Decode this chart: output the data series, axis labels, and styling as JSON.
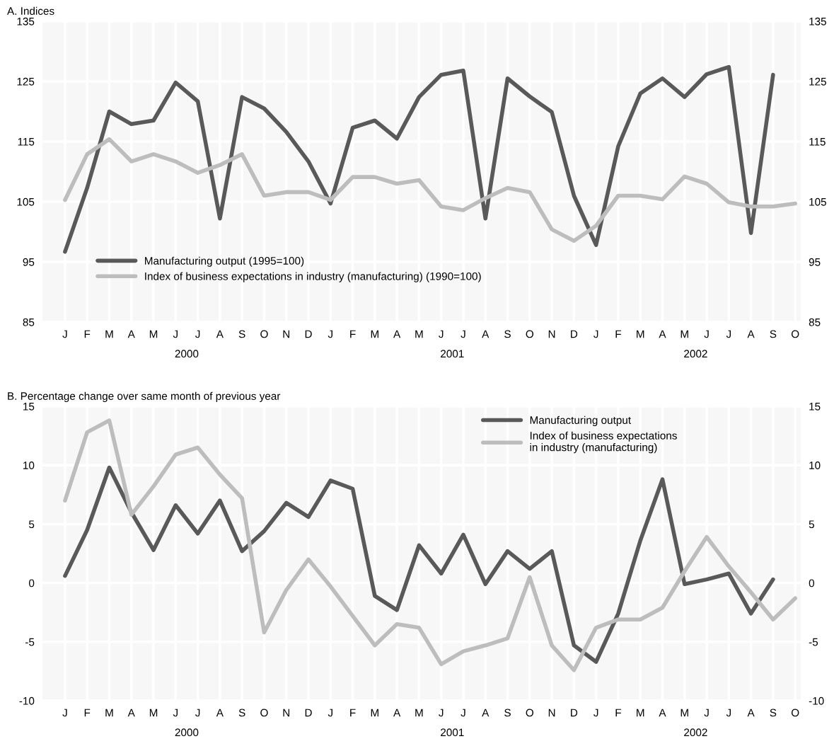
{
  "chart_data": [
    {
      "type": "line",
      "title": "A. Indices",
      "categories": [
        "J",
        "F",
        "M",
        "A",
        "M",
        "J",
        "J",
        "A",
        "S",
        "O",
        "N",
        "D",
        "J",
        "F",
        "M",
        "A",
        "M",
        "J",
        "J",
        "A",
        "S",
        "O",
        "N",
        "D",
        "J",
        "F",
        "M",
        "A",
        "M",
        "J",
        "J",
        "A",
        "S",
        "O"
      ],
      "series": [
        {
          "name": "Manufacturing output (1995=100)",
          "color": "#595959",
          "values": [
            96.7,
            107.3,
            120.0,
            117.9,
            118.5,
            124.8,
            121.7,
            102.2,
            122.4,
            120.5,
            116.6,
            111.7,
            104.7,
            117.3,
            118.5,
            115.5,
            122.4,
            126.1,
            126.8,
            102.2,
            125.5,
            122.5,
            119.9,
            106.0,
            97.8,
            114.2,
            123.0,
            125.5,
            122.4,
            126.2,
            127.4,
            99.8,
            126.1,
            null
          ]
        },
        {
          "name": "Index of business expectations in industry (manufacturing) (1990=100)",
          "color": "#bdbdbd",
          "values": [
            105.3,
            112.9,
            115.4,
            111.7,
            112.9,
            111.7,
            109.8,
            111.1,
            112.9,
            106.0,
            106.6,
            106.6,
            105.3,
            109.1,
            109.1,
            108.0,
            108.6,
            104.2,
            103.6,
            105.6,
            107.3,
            106.6,
            100.4,
            98.5,
            101.0,
            106.0,
            106.0,
            105.4,
            109.2,
            108.0,
            104.9,
            104.2,
            104.2,
            104.7
          ]
        }
      ],
      "ylim": [
        85,
        135
      ],
      "yticks": [
        85,
        95,
        105,
        115,
        125,
        135
      ],
      "y2lim": [
        85,
        135
      ],
      "y2ticks": [
        85,
        95,
        105,
        115,
        125,
        135
      ],
      "grid": true,
      "legend": "bottom left",
      "line_style": "solid",
      "marker": "none",
      "annotations": [
        "2000",
        "2001",
        "2002"
      ]
    },
    {
      "type": "line",
      "title": "B. Percentage change over same month of previous year",
      "categories": [
        "J",
        "F",
        "M",
        "A",
        "M",
        "J",
        "J",
        "A",
        "S",
        "O",
        "N",
        "D",
        "J",
        "F",
        "M",
        "A",
        "M",
        "J",
        "J",
        "A",
        "S",
        "O",
        "N",
        "D",
        "J",
        "F",
        "M",
        "A",
        "M",
        "J",
        "J",
        "A",
        "S",
        "O"
      ],
      "series": [
        {
          "name": "Manufacturing output",
          "color": "#595959",
          "values": [
            0.6,
            4.5,
            9.8,
            6.0,
            2.8,
            6.6,
            4.2,
            7.0,
            2.7,
            4.4,
            6.8,
            5.6,
            8.7,
            8.0,
            -1.1,
            -2.3,
            3.2,
            0.8,
            4.1,
            -0.1,
            2.7,
            1.2,
            2.7,
            -5.3,
            -6.7,
            -2.6,
            3.6,
            8.8,
            -0.1,
            0.3,
            0.8,
            -2.6,
            0.3,
            null
          ]
        },
        {
          "name": "Index of business expectations\nin industry (manufacturing)",
          "color": "#bdbdbd",
          "values": [
            7.0,
            12.8,
            13.8,
            5.8,
            8.2,
            10.9,
            11.5,
            9.2,
            7.2,
            -4.2,
            -0.6,
            2.0,
            -0.3,
            -2.8,
            -5.3,
            -3.5,
            -3.8,
            -6.9,
            -5.8,
            -5.3,
            -4.7,
            0.5,
            -5.3,
            -7.4,
            -3.8,
            -3.1,
            -3.1,
            -2.1,
            1.0,
            3.9,
            1.4,
            -0.8,
            -3.1,
            -1.3
          ]
        }
      ],
      "ylim": [
        -10,
        15
      ],
      "yticks": [
        -10,
        -5,
        0,
        5,
        10,
        15
      ],
      "y2lim": [
        -10,
        15
      ],
      "y2ticks": [
        -10,
        -5,
        0,
        5,
        10,
        15
      ],
      "grid": true,
      "legend": "top right",
      "line_style": "solid",
      "marker": "none",
      "annotations": [
        "2000",
        "2001",
        "2002"
      ]
    }
  ]
}
